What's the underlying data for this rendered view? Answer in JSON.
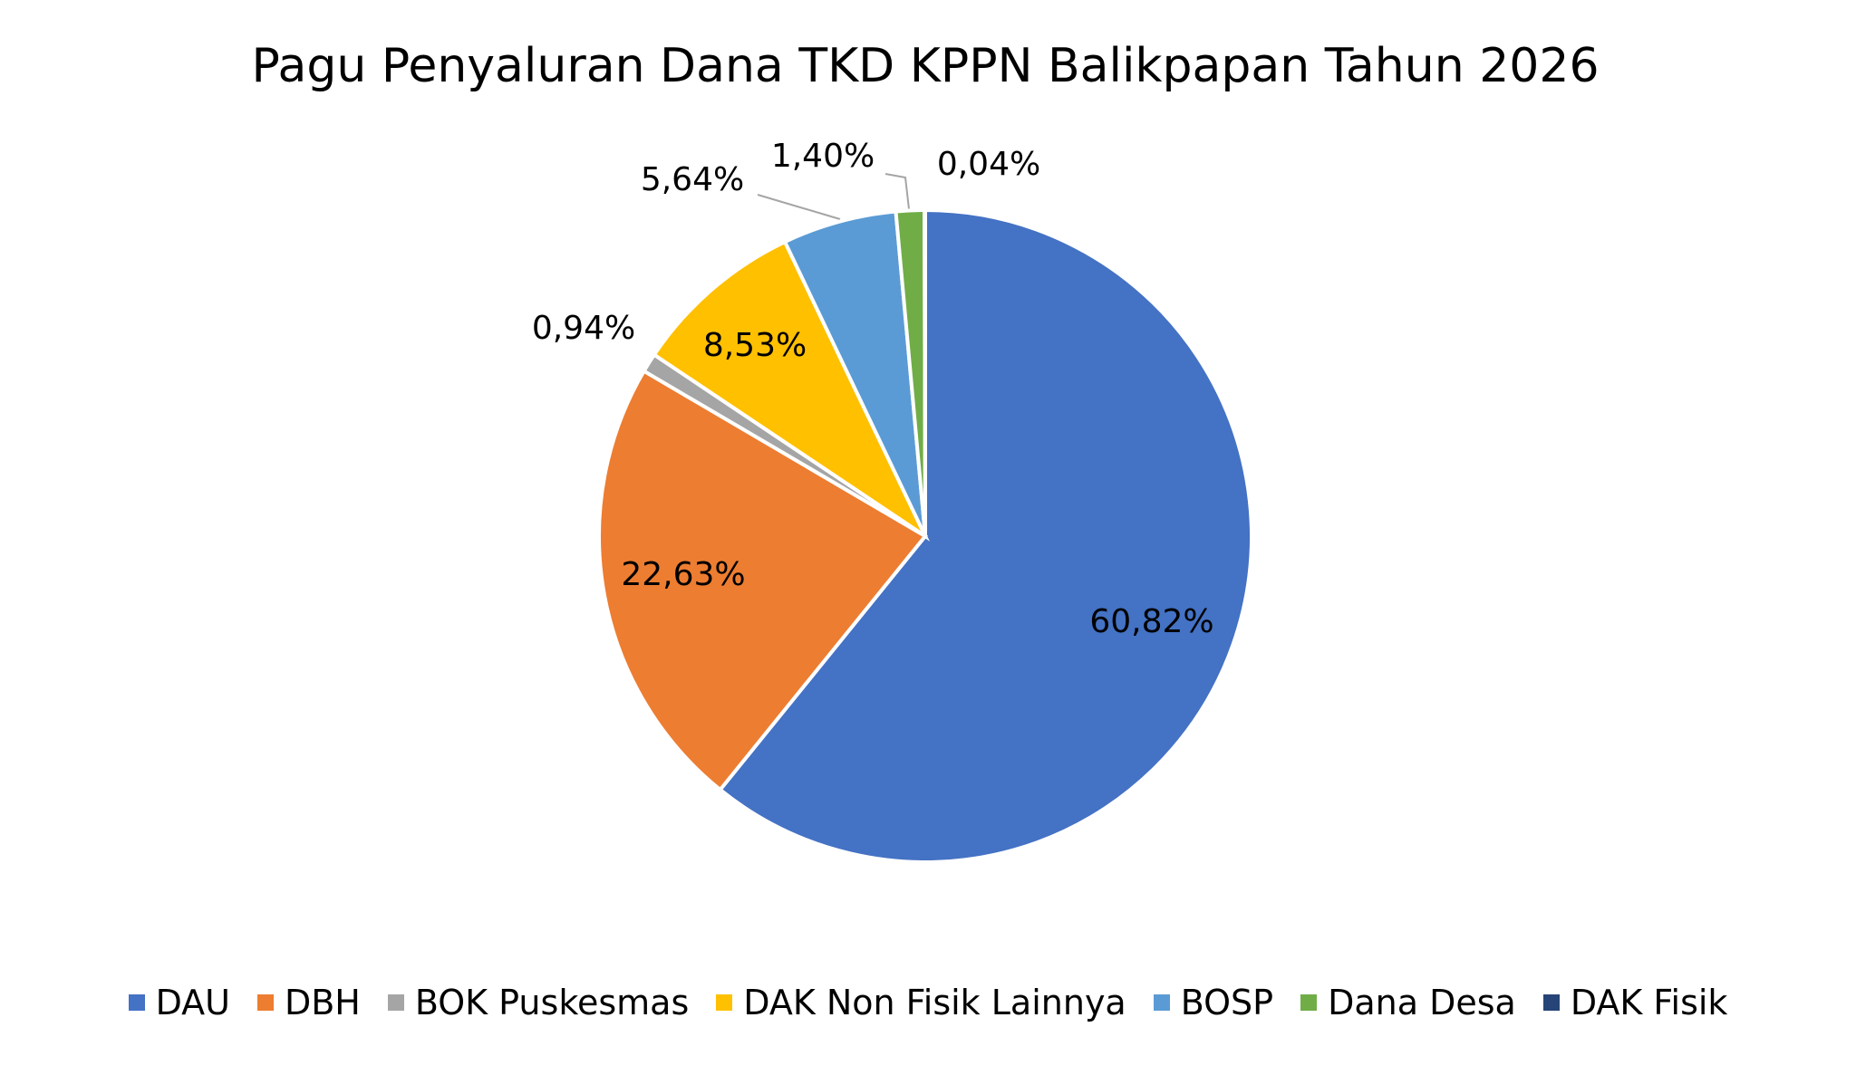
{
  "chart_data": {
    "type": "pie",
    "title": "Pagu Penyaluran Dana TKD  KPPN Balikpapan Tahun 2026",
    "categories": [
      "DAU",
      "DBH",
      "BOK Puskesmas",
      "DAK Non Fisik Lainnya",
      "BOSP",
      "Dana Desa",
      "DAK Fisik"
    ],
    "values": [
      60.82,
      22.63,
      0.94,
      8.53,
      5.64,
      1.4,
      0.04
    ],
    "value_labels": [
      "60,82%",
      "22,63%",
      "0,94%",
      "8,53%",
      "5,64%",
      "1,40%",
      "0,04%"
    ],
    "colors": [
      "#4472c4",
      "#ed7d31",
      "#a5a5a5",
      "#ffc000",
      "#5b9bd5",
      "#70ad47",
      "#264478"
    ],
    "legend": "bottom"
  }
}
